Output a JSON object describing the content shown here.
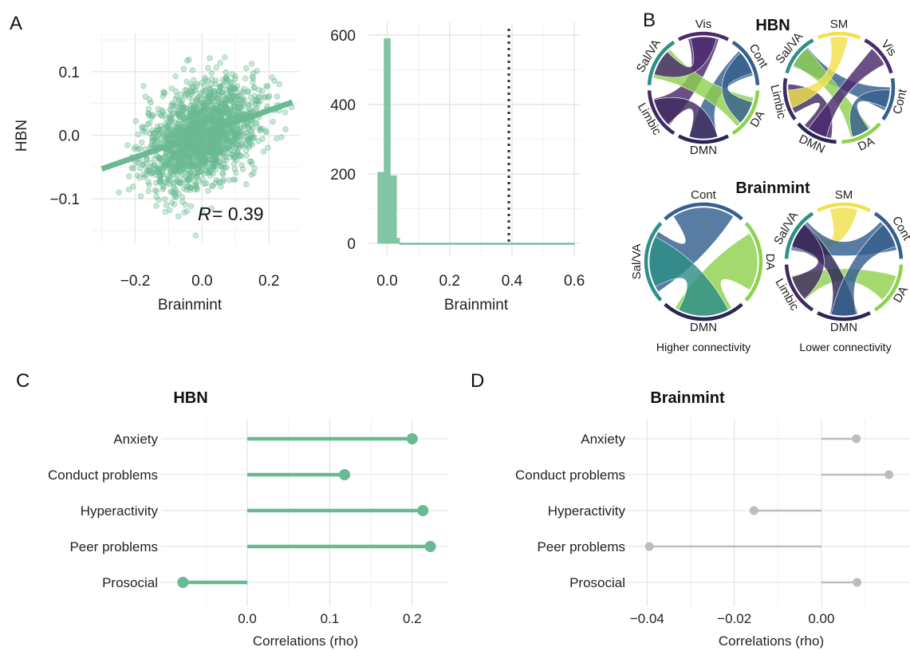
{
  "panels": {
    "A": "A",
    "B": "B",
    "C": "C",
    "D": "D"
  },
  "colors": {
    "green": "#69b993",
    "gray": "#bdbdbd",
    "grid": "#e6e6e6"
  },
  "chart_data": [
    {
      "type": "scatter",
      "panel": "A",
      "xlabel": "Brainmint",
      "ylabel": "HBN",
      "xlim": [
        -0.33,
        0.29
      ],
      "ylim": [
        -0.17,
        0.16
      ],
      "x_ticks": [
        -0.2,
        0.0,
        0.2
      ],
      "x_tick_labels": [
        "−0.2",
        "0.0",
        "0.2"
      ],
      "y_ticks": [
        -0.1,
        0.0,
        0.1
      ],
      "y_tick_labels": [
        "−0.1",
        "0.0",
        "0.1"
      ],
      "fit_line": {
        "x": [
          -0.3,
          0.27
        ],
        "y": [
          -0.053,
          0.052
        ]
      },
      "annotation_R": "R",
      "annotation_value": "= 0.39",
      "r": 0.39,
      "n_points_approx": 2600
    },
    {
      "type": "bar",
      "panel": "A-histogram",
      "xlabel": "Brainmint",
      "ylabel": "",
      "xlim": [
        -0.06,
        0.62
      ],
      "ylim": [
        0,
        600
      ],
      "x_ticks": [
        0.0,
        0.2,
        0.4,
        0.6
      ],
      "x_tick_labels": [
        "0.0",
        "0.2",
        "0.4",
        "0.6"
      ],
      "y_ticks": [
        0,
        200,
        400,
        600
      ],
      "y_tick_labels": [
        "0",
        "200",
        "400",
        "600"
      ],
      "bins": [
        {
          "x0": -0.03,
          "x1": -0.02,
          "count": 205
        },
        {
          "x0": -0.02,
          "x1": -0.01,
          "count": 205
        },
        {
          "x0": -0.01,
          "x1": 0.0,
          "count": 590
        },
        {
          "x0": 0.0,
          "x1": 0.01,
          "count": 590
        },
        {
          "x0": 0.01,
          "x1": 0.02,
          "count": 195
        },
        {
          "x0": 0.02,
          "x1": 0.03,
          "count": 195
        },
        {
          "x0": 0.03,
          "x1": 0.04,
          "count": 15
        },
        {
          "x0": 0.04,
          "x1": 0.6,
          "count": 1
        }
      ],
      "reference_line_x": 0.39
    },
    {
      "type": "lollipop",
      "panel": "C",
      "title": "HBN",
      "xlabel": "Correlations (rho)",
      "categories": [
        "Anxiety",
        "Conduct problems",
        "Hyperactivity",
        "Peer problems",
        "Prosocial"
      ],
      "values": [
        0.2,
        0.118,
        0.213,
        0.222,
        -0.078
      ],
      "xlim": [
        -0.09,
        0.235
      ],
      "x_ticks": [
        0.0,
        0.1,
        0.2
      ],
      "x_tick_labels": [
        "0.0",
        "0.1",
        "0.2"
      ]
    },
    {
      "type": "lollipop",
      "panel": "D",
      "title": "Brainmint",
      "xlabel": "Correlations (rho)",
      "categories": [
        "Anxiety",
        "Conduct problems",
        "Hyperactivity",
        "Peer problems",
        "Prosocial"
      ],
      "values": [
        0.008,
        0.0155,
        -0.0155,
        -0.0395,
        0.0082
      ],
      "xlim": [
        -0.043,
        0.0185
      ],
      "x_ticks": [
        -0.04,
        -0.02,
        0.0
      ],
      "x_tick_labels": [
        "−0.04",
        "−0.02",
        "0.00"
      ]
    }
  ],
  "chord": {
    "title_top": "HBN",
    "title_bottom": "Brainmint",
    "caption_left": "Higher connectivity",
    "caption_right": "Lower connectivity",
    "networks": [
      {
        "name": "Vis",
        "color": "#4b2a6e"
      },
      {
        "name": "SM",
        "color": "#f2e14c"
      },
      {
        "name": "DA",
        "color": "#8fd14f"
      },
      {
        "name": "Sal/VA",
        "color": "#2d8f86"
      },
      {
        "name": "Limbic",
        "color": "#3f2b5f"
      },
      {
        "name": "Cont",
        "color": "#355f8d"
      },
      {
        "name": "DMN",
        "color": "#2b2553"
      }
    ],
    "diagrams": [
      {
        "labels": [
          "Vis",
          "Cont",
          "DA",
          "DMN",
          "Limbic",
          "Sal/VA"
        ]
      },
      {
        "labels": [
          "SM",
          "Vis",
          "Cont",
          "DA",
          "DMN",
          "Limbic",
          "Sal/VA"
        ]
      },
      {
        "labels": [
          "Cont",
          "DA",
          "DMN",
          "Sal/VA"
        ]
      },
      {
        "labels": [
          "SM",
          "Cont",
          "DA",
          "DMN",
          "Limbic",
          "Sal/VA"
        ]
      }
    ]
  }
}
